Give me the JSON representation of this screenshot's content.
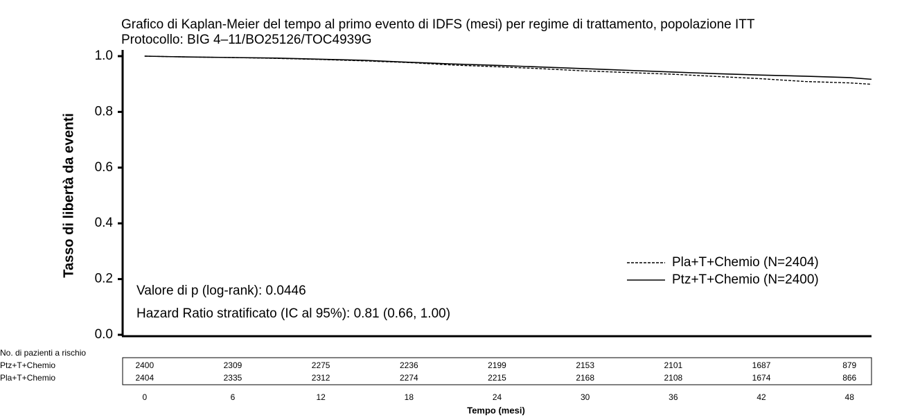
{
  "chart_data": {
    "type": "line",
    "title": "Grafico di Kaplan-Meier del tempo al primo evento di IDFS (mesi) per regime di trattamento, popolazione ITT",
    "subtitle": "Protocollo: BIG 4–11/BO25126/TOC4939G",
    "y_label": "Tasso di libertà da eventi",
    "x_label": "Tempo (mesi)",
    "annotations": [
      "Valore di p (log-rank): 0.0446",
      "Hazard Ratio stratificato (IC al 95%): 0.81 (0.66, 1.00)"
    ],
    "xlim": [
      -1.5,
      49.5
    ],
    "xticks": [
      0,
      6,
      12,
      18,
      24,
      30,
      36,
      42,
      48
    ],
    "ylim": [
      0,
      1
    ],
    "yticks": [
      {
        "value": 0,
        "label": "0.0"
      },
      0.2,
      0.4,
      0.6,
      0.8,
      {
        "value": 1,
        "label": "1.0"
      }
    ],
    "legend": "right",
    "series": [
      {
        "name": "Pla+T+Chemio (N=2404)",
        "color": "#000000",
        "dash": "dashed",
        "x": [
          0,
          3,
          6,
          9,
          12,
          15,
          18,
          21,
          24,
          27,
          30,
          33,
          36,
          39,
          42,
          45,
          48,
          49.5
        ],
        "values": [
          1.0,
          0.997,
          0.995,
          0.992,
          0.988,
          0.983,
          0.977,
          0.968,
          0.962,
          0.955,
          0.947,
          0.941,
          0.935,
          0.927,
          0.919,
          0.909,
          0.904,
          0.899
        ]
      },
      {
        "name": "Ptz+T+Chemio (N=2400)",
        "color": "#000000",
        "dash": "solid",
        "x": [
          0,
          3,
          6,
          9,
          12,
          15,
          18,
          21,
          24,
          27,
          30,
          33,
          36,
          39,
          42,
          45,
          48,
          49.5
        ],
        "values": [
          1.0,
          0.997,
          0.995,
          0.993,
          0.989,
          0.985,
          0.978,
          0.972,
          0.967,
          0.961,
          0.955,
          0.949,
          0.943,
          0.937,
          0.932,
          0.928,
          0.923,
          0.917
        ]
      }
    ],
    "risk_table": {
      "title": "No. di pazienti a rischio",
      "rows": [
        {
          "name": "Ptz+T+Chemio",
          "values": [
            2400,
            2309,
            2275,
            2236,
            2199,
            2153,
            2101,
            1687,
            879
          ]
        },
        {
          "name": "Pla+T+Chemio",
          "values": [
            2404,
            2335,
            2312,
            2274,
            2215,
            2168,
            2108,
            1674,
            866
          ]
        }
      ]
    }
  }
}
